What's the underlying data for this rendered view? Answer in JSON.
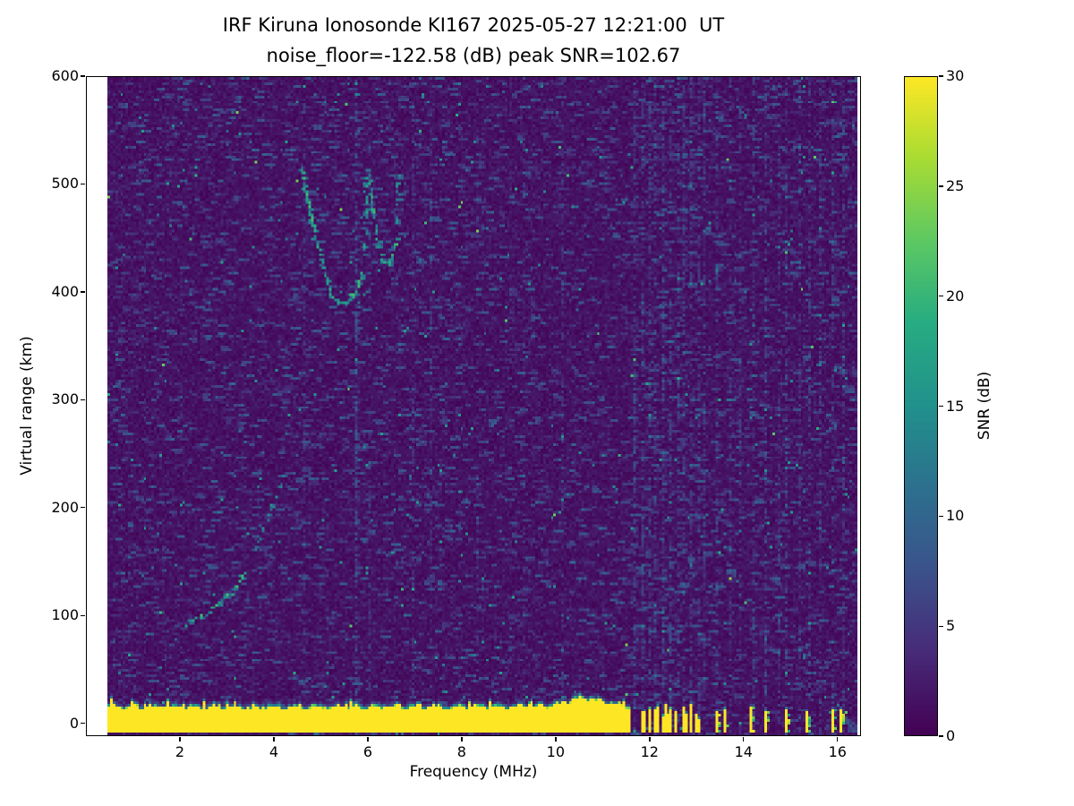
{
  "chart_data": {
    "type": "heatmap",
    "title": "IRF Kiruna Ionosonde KI167 2025-05-27 12:21:00  UT",
    "subtitle": "noise_floor=-122.58 (dB) peak SNR=102.67",
    "station": "KI167",
    "datetime_ut": "2025-05-27 12:21:00",
    "noise_floor_db": -122.58,
    "peak_snr_db": 102.67,
    "xlabel": "Frequency (MHz)",
    "ylabel": "Virtual range (km)",
    "xlim": [
      0,
      16.5
    ],
    "ylim": [
      -12,
      600
    ],
    "x_ticks": [
      2,
      4,
      6,
      8,
      10,
      12,
      14,
      16
    ],
    "y_ticks": [
      0,
      100,
      200,
      300,
      400,
      500,
      600
    ],
    "data_extent_mhz": [
      0.44,
      16.45
    ],
    "grid": false,
    "colormap": "viridis",
    "colormap_stops": [
      [
        0.0,
        "#440154"
      ],
      [
        0.13,
        "#472c7a"
      ],
      [
        0.25,
        "#3b528b"
      ],
      [
        0.38,
        "#2c718e"
      ],
      [
        0.5,
        "#21918c"
      ],
      [
        0.63,
        "#27ad81"
      ],
      [
        0.75,
        "#5cc863"
      ],
      [
        0.88,
        "#aadc32"
      ],
      [
        1.0,
        "#fde725"
      ]
    ],
    "colorbar": {
      "label": "SNR (dB)",
      "ticks": [
        0,
        5,
        10,
        15,
        20,
        25,
        30
      ],
      "min": 0,
      "max": 30,
      "position": "right"
    },
    "features": {
      "ground_clutter": {
        "freq_range_mhz": [
          0.44,
          11.6
        ],
        "range_km": [
          -8.5,
          14
        ],
        "snr_db": 30,
        "bump": {
          "center_mhz": 10.6,
          "sigma_mhz": 0.55,
          "extra_km": 8
        }
      },
      "intermittent_clutter": {
        "freq_range_mhz": [
          11.6,
          13.18
        ],
        "duty": 0.55,
        "max_top_km": 18,
        "snr_db": 30
      },
      "isolated_clutter_freqs_mhz": [
        13.45,
        13.62,
        14.15,
        14.5,
        14.95,
        15.35,
        15.9,
        16.1
      ],
      "echo_traces": [
        {
          "name": "E-layer",
          "snr_db_range": [
            9,
            21
          ],
          "density": 0.85,
          "points": [
            [
              2.15,
              93
            ],
            [
              2.45,
              100
            ],
            [
              2.7,
              108
            ],
            [
              2.95,
              117
            ],
            [
              3.15,
              126
            ],
            [
              3.35,
              139
            ]
          ]
        },
        {
          "name": "E-F-transition",
          "snr_db_range": [
            8,
            16
          ],
          "density": 0.35,
          "points": [
            [
              3.6,
              163
            ],
            [
              3.8,
              186
            ],
            [
              3.95,
              205
            ],
            [
              4.1,
              222
            ],
            [
              4.2,
              232
            ]
          ]
        },
        {
          "name": "F-cusp-1-left-branch",
          "snr_db_range": [
            10,
            21
          ],
          "density": 0.8,
          "points": [
            [
              4.58,
              516
            ],
            [
              4.72,
              480
            ],
            [
              4.88,
              449
            ],
            [
              5.05,
              420
            ],
            [
              5.2,
              400
            ],
            [
              5.35,
              391
            ],
            [
              5.5,
              391
            ],
            [
              5.65,
              398
            ],
            [
              5.78,
              409
            ],
            [
              5.87,
              420
            ]
          ]
        },
        {
          "name": "F-cusp-1-vertical",
          "snr_db_range": [
            9,
            18
          ],
          "density": 0.55,
          "points": [
            [
              5.9,
              432
            ],
            [
              5.92,
              470
            ],
            [
              5.93,
              515
            ]
          ]
        },
        {
          "name": "F-cusp-2-left-branch",
          "snr_db_range": [
            10,
            21
          ],
          "density": 0.8,
          "points": [
            [
              5.99,
              512
            ],
            [
              6.06,
              484
            ],
            [
              6.14,
              460
            ],
            [
              6.22,
              443
            ],
            [
              6.31,
              429
            ],
            [
              6.42,
              428
            ],
            [
              6.52,
              437
            ],
            [
              6.58,
              449
            ]
          ]
        },
        {
          "name": "F-cusp-2-vertical",
          "snr_db_range": [
            9,
            16
          ],
          "density": 0.5,
          "points": [
            [
              6.6,
              465
            ],
            [
              6.62,
              490
            ],
            [
              6.63,
              513
            ]
          ]
        }
      ],
      "rfi_stripes": [
        {
          "freq_mhz": 4.65,
          "strength": 0.25
        },
        {
          "freq_mhz": 5.75,
          "strength": 0.8
        },
        {
          "freq_mhz": 6.0,
          "strength": 0.3
        },
        {
          "freq_mhz": 6.95,
          "strength": 0.3
        },
        {
          "freq_mhz": 7.35,
          "strength": 0.25
        },
        {
          "freq_mhz": 8.35,
          "strength": 0.2
        },
        {
          "freq_mhz": 9.3,
          "strength": 0.2
        },
        {
          "freq_mhz": 10.15,
          "strength": 0.2
        },
        {
          "freq_mhz": 11.7,
          "strength": 0.6
        },
        {
          "freq_mhz": 11.85,
          "strength": 0.5
        },
        {
          "freq_mhz": 12.0,
          "strength": 0.6
        },
        {
          "freq_mhz": 12.15,
          "strength": 0.5
        },
        {
          "freq_mhz": 12.3,
          "strength": 0.6
        },
        {
          "freq_mhz": 12.45,
          "strength": 0.5
        },
        {
          "freq_mhz": 12.6,
          "strength": 0.6
        },
        {
          "freq_mhz": 12.75,
          "strength": 0.5
        },
        {
          "freq_mhz": 12.9,
          "strength": 0.55
        },
        {
          "freq_mhz": 13.05,
          "strength": 0.5
        },
        {
          "freq_mhz": 13.2,
          "strength": 0.45
        },
        {
          "freq_mhz": 13.45,
          "strength": 0.5
        },
        {
          "freq_mhz": 13.7,
          "strength": 0.35
        },
        {
          "freq_mhz": 13.95,
          "strength": 0.4
        },
        {
          "freq_mhz": 14.2,
          "strength": 0.5
        },
        {
          "freq_mhz": 14.5,
          "strength": 0.55
        },
        {
          "freq_mhz": 14.75,
          "strength": 0.35
        },
        {
          "freq_mhz": 14.95,
          "strength": 0.45
        },
        {
          "freq_mhz": 15.2,
          "strength": 0.35
        },
        {
          "freq_mhz": 15.4,
          "strength": 0.45
        },
        {
          "freq_mhz": 15.65,
          "strength": 0.3
        },
        {
          "freq_mhz": 15.9,
          "strength": 0.5
        },
        {
          "freq_mhz": 16.15,
          "strength": 0.45
        }
      ]
    }
  },
  "colors": {
    "background": "#ffffff",
    "axes": "#000000",
    "min_color": "#440154",
    "max_color": "#fde725"
  }
}
